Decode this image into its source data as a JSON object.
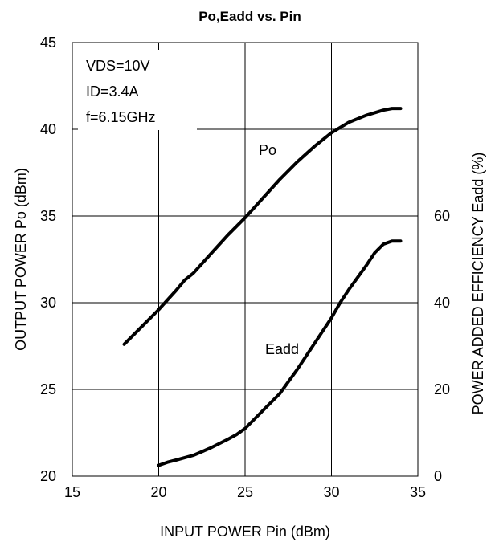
{
  "chart_data": {
    "type": "line",
    "title": "Po,Eadd vs. Pin",
    "xlabel": "INPUT POWER Pin (dBm)",
    "ylabel_left": "OUTPUT POWER Po (dBm)",
    "ylabel_right": "POWER ADDED EFFICIENCY Eadd (%)",
    "xlim": [
      15,
      35
    ],
    "ylim_left": [
      20,
      45
    ],
    "ylim_right": [
      0,
      100
    ],
    "x_ticks": [
      "15",
      "20",
      "25",
      "30",
      "35"
    ],
    "y_left_ticks": [
      "20",
      "25",
      "30",
      "35",
      "40",
      "45"
    ],
    "y_right_ticks": [
      "0",
      "20",
      "40",
      "60"
    ],
    "grid": true,
    "conditions": [
      "VDS=10V",
      "ID=3.4A",
      "f=6.15GHz"
    ],
    "series": [
      {
        "name": "Po",
        "axis": "left",
        "x": [
          18,
          19,
          20,
          21,
          21.5,
          22,
          23,
          24,
          25,
          26,
          27,
          28,
          29,
          30,
          31,
          32,
          33,
          33.5,
          34
        ],
        "y": [
          27.6,
          28.6,
          29.6,
          30.7,
          31.3,
          31.7,
          32.8,
          33.9,
          34.9,
          36.0,
          37.1,
          38.1,
          39.0,
          39.8,
          40.4,
          40.8,
          41.1,
          41.2,
          41.2
        ]
      },
      {
        "name": "Eadd",
        "axis": "right",
        "x": [
          20,
          20.5,
          21,
          22,
          23,
          24,
          24.5,
          25,
          26,
          27,
          28,
          29,
          30,
          30.5,
          31,
          32,
          32.5,
          33,
          33.5,
          34
        ],
        "y": [
          2.5,
          3.2,
          3.7,
          4.8,
          6.5,
          8.5,
          9.6,
          11.0,
          15.0,
          19.0,
          24.5,
          30.5,
          36.5,
          40.0,
          43.0,
          48.5,
          51.5,
          53.5,
          54.2,
          54.2
        ]
      }
    ]
  }
}
